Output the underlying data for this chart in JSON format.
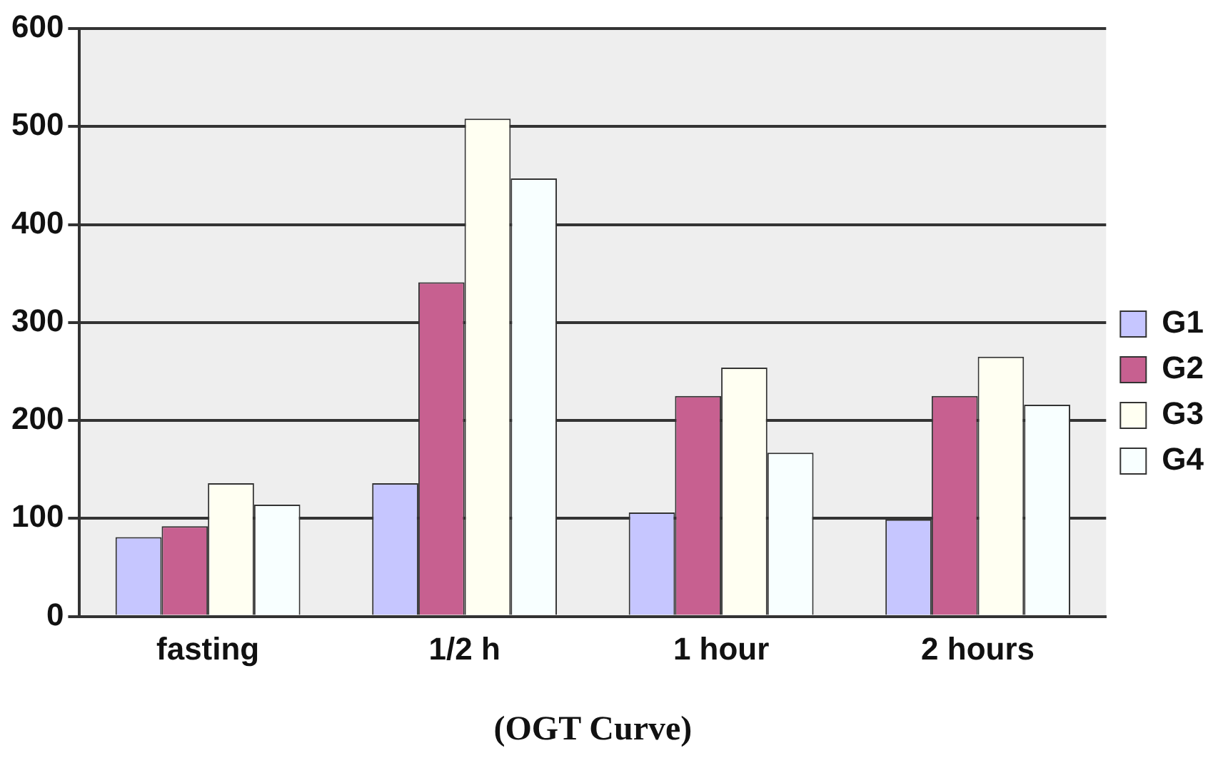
{
  "chart_data": {
    "type": "bar",
    "xlabel": "(OGT Curve)",
    "categories": [
      "fasting",
      "1/2 h",
      "1 hour",
      "2 hours"
    ],
    "series": [
      {
        "name": "G1",
        "color": "#c6c6ff",
        "values": [
          81,
          136,
          106,
          99
        ]
      },
      {
        "name": "G2",
        "color": "#c76090",
        "values": [
          92,
          341,
          225,
          225
        ]
      },
      {
        "name": "G3",
        "color": "#fffff2",
        "values": [
          136,
          508,
          254,
          265
        ]
      },
      {
        "name": "G4",
        "color": "#f8ffff",
        "values": [
          114,
          447,
          167,
          216
        ]
      }
    ],
    "ylim": [
      0,
      600
    ],
    "yticks": [
      0,
      100,
      200,
      300,
      400,
      500,
      600
    ],
    "grid": "y",
    "legend": "right"
  }
}
